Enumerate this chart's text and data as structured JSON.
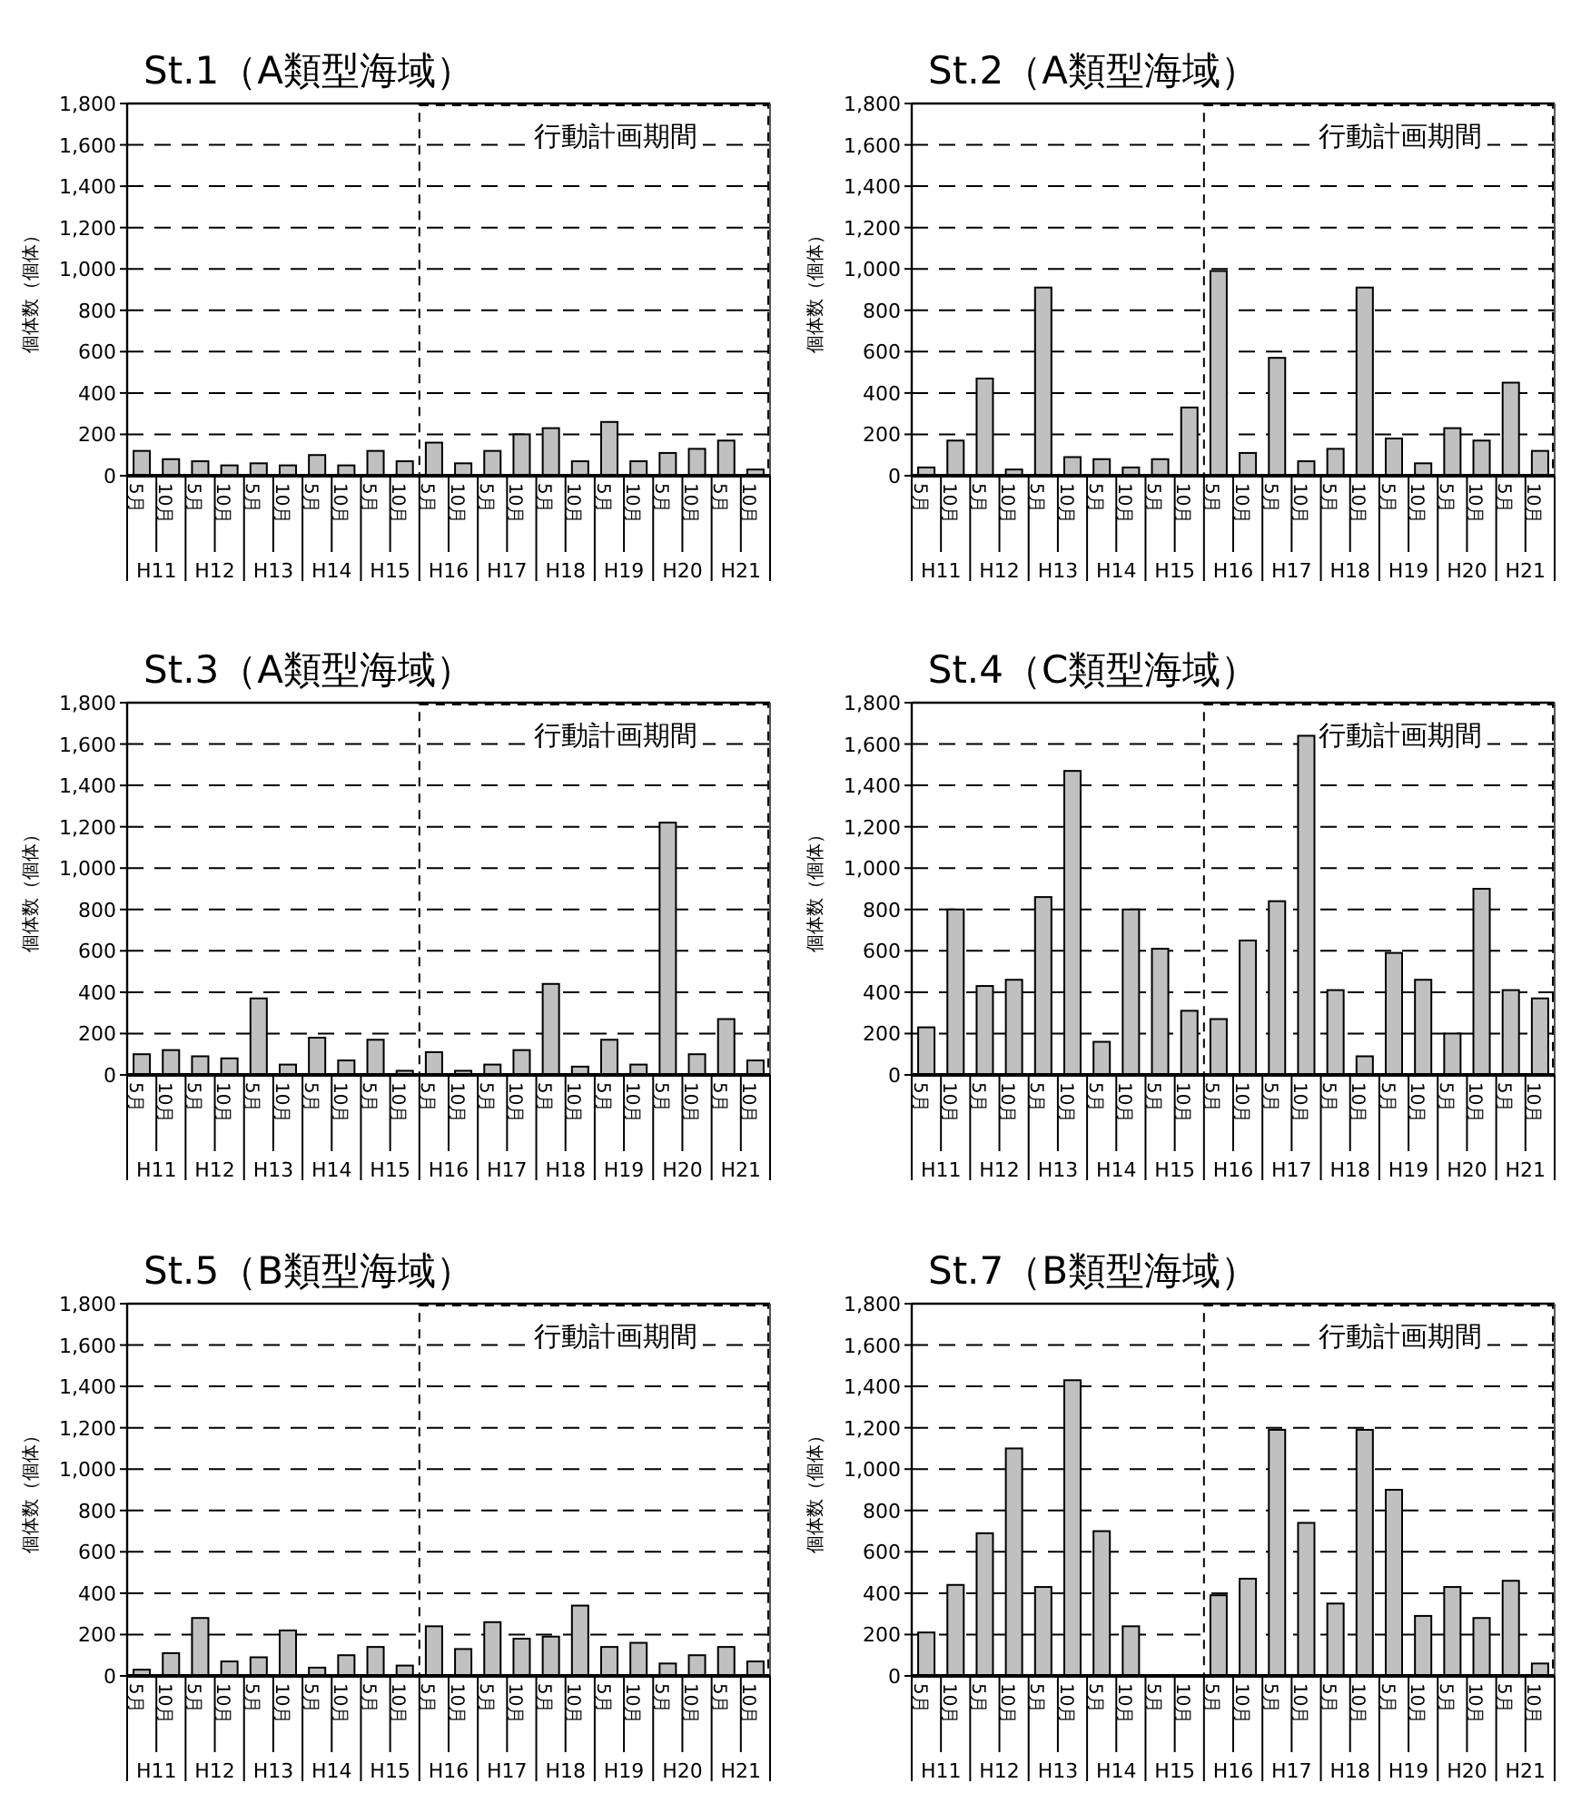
{
  "chart_data": [
    {
      "type": "bar",
      "title": "St.1（A類型海域）",
      "ylabel": "個体数（個体）",
      "categories": [
        "H11",
        "H12",
        "H13",
        "H14",
        "H15",
        "H16",
        "H17",
        "H18",
        "H19",
        "H20",
        "H21"
      ],
      "ylim": [
        0,
        1800
      ],
      "yticks": [
        {
          "value": 0,
          "label": "0"
        },
        {
          "value": 200,
          "label": "200"
        },
        {
          "value": 400,
          "label": "400"
        },
        {
          "value": 600,
          "label": "600"
        },
        {
          "value": 800,
          "label": "800"
        },
        {
          "value": 1000,
          "label": "1,000"
        },
        {
          "value": 1200,
          "label": "1,200"
        },
        {
          "value": 1400,
          "label": "1,400"
        },
        {
          "value": 1600,
          "label": "1,600"
        },
        {
          "value": 1800,
          "label": "1,800"
        }
      ],
      "grid": "y",
      "annotations": [
        "行動計画期間"
      ],
      "series": [
        {
          "name": "5月",
          "color": "#c0c0c0",
          "values": [
            120,
            70,
            60,
            100,
            120,
            160,
            120,
            230,
            260,
            110,
            170
          ]
        },
        {
          "name": "10月",
          "color": "#c0c0c0",
          "values": [
            80,
            50,
            50,
            50,
            70,
            60,
            200,
            70,
            70,
            130,
            30
          ]
        }
      ]
    },
    {
      "type": "bar",
      "title": "St.2（A類型海域）",
      "ylabel": "個体数（個体）",
      "categories": [
        "H11",
        "H12",
        "H13",
        "H14",
        "H15",
        "H16",
        "H17",
        "H18",
        "H19",
        "H20",
        "H21"
      ],
      "ylim": [
        0,
        1800
      ],
      "yticks": [
        {
          "value": 0,
          "label": "0"
        },
        {
          "value": 200,
          "label": "200"
        },
        {
          "value": 400,
          "label": "400"
        },
        {
          "value": 600,
          "label": "600"
        },
        {
          "value": 800,
          "label": "800"
        },
        {
          "value": 1000,
          "label": "1,000"
        },
        {
          "value": 1200,
          "label": "1,200"
        },
        {
          "value": 1400,
          "label": "1,400"
        },
        {
          "value": 1600,
          "label": "1,600"
        },
        {
          "value": 1800,
          "label": "1,800"
        }
      ],
      "grid": "y",
      "annotations": [
        "行動計画期間"
      ],
      "series": [
        {
          "name": "5月",
          "color": "#c0c0c0",
          "values": [
            40,
            470,
            910,
            80,
            80,
            990,
            570,
            130,
            180,
            230,
            450
          ]
        },
        {
          "name": "10月",
          "color": "#c0c0c0",
          "values": [
            170,
            30,
            90,
            40,
            330,
            110,
            70,
            910,
            60,
            170,
            120
          ]
        }
      ]
    },
    {
      "type": "bar",
      "title": "St.3（A類型海域）",
      "ylabel": "個体数（個体）",
      "categories": [
        "H11",
        "H12",
        "H13",
        "H14",
        "H15",
        "H16",
        "H17",
        "H18",
        "H19",
        "H20",
        "H21"
      ],
      "ylim": [
        0,
        1800
      ],
      "yticks": [
        {
          "value": 0,
          "label": "0"
        },
        {
          "value": 200,
          "label": "200"
        },
        {
          "value": 400,
          "label": "400"
        },
        {
          "value": 600,
          "label": "600"
        },
        {
          "value": 800,
          "label": "800"
        },
        {
          "value": 1000,
          "label": "1,000"
        },
        {
          "value": 1200,
          "label": "1,200"
        },
        {
          "value": 1400,
          "label": "1,400"
        },
        {
          "value": 1600,
          "label": "1,600"
        },
        {
          "value": 1800,
          "label": "1,800"
        }
      ],
      "grid": "y",
      "annotations": [
        "行動計画期間"
      ],
      "series": [
        {
          "name": "5月",
          "color": "#c0c0c0",
          "values": [
            100,
            90,
            370,
            180,
            170,
            110,
            50,
            440,
            170,
            1220,
            270
          ]
        },
        {
          "name": "10月",
          "color": "#c0c0c0",
          "values": [
            120,
            80,
            50,
            70,
            20,
            20,
            120,
            40,
            50,
            100,
            70
          ]
        }
      ]
    },
    {
      "type": "bar",
      "title": "St.4（C類型海域）",
      "ylabel": "個体数（個体）",
      "categories": [
        "H11",
        "H12",
        "H13",
        "H14",
        "H15",
        "H16",
        "H17",
        "H18",
        "H19",
        "H20",
        "H21"
      ],
      "ylim": [
        0,
        1800
      ],
      "yticks": [
        {
          "value": 0,
          "label": "0"
        },
        {
          "value": 200,
          "label": "200"
        },
        {
          "value": 400,
          "label": "400"
        },
        {
          "value": 600,
          "label": "600"
        },
        {
          "value": 800,
          "label": "800"
        },
        {
          "value": 1000,
          "label": "1,000"
        },
        {
          "value": 1200,
          "label": "1,200"
        },
        {
          "value": 1400,
          "label": "1,400"
        },
        {
          "value": 1600,
          "label": "1,600"
        },
        {
          "value": 1800,
          "label": "1,800"
        }
      ],
      "grid": "y",
      "annotations": [
        "行動計画期間"
      ],
      "series": [
        {
          "name": "5月",
          "color": "#c0c0c0",
          "values": [
            230,
            430,
            860,
            160,
            610,
            270,
            840,
            410,
            590,
            200,
            410
          ]
        },
        {
          "name": "10月",
          "color": "#c0c0c0",
          "values": [
            800,
            460,
            1470,
            800,
            310,
            650,
            1640,
            90,
            460,
            900,
            370
          ]
        }
      ]
    },
    {
      "type": "bar",
      "title": "St.5（B類型海域）",
      "ylabel": "個体数（個体）",
      "categories": [
        "H11",
        "H12",
        "H13",
        "H14",
        "H15",
        "H16",
        "H17",
        "H18",
        "H19",
        "H20",
        "H21"
      ],
      "ylim": [
        0,
        1800
      ],
      "yticks": [
        {
          "value": 0,
          "label": "0"
        },
        {
          "value": 200,
          "label": "200"
        },
        {
          "value": 400,
          "label": "400"
        },
        {
          "value": 600,
          "label": "600"
        },
        {
          "value": 800,
          "label": "800"
        },
        {
          "value": 1000,
          "label": "1,000"
        },
        {
          "value": 1200,
          "label": "1,200"
        },
        {
          "value": 1400,
          "label": "1,400"
        },
        {
          "value": 1600,
          "label": "1,600"
        },
        {
          "value": 1800,
          "label": "1,800"
        }
      ],
      "grid": "y",
      "annotations": [
        "行動計画期間"
      ],
      "series": [
        {
          "name": "5月",
          "color": "#c0c0c0",
          "values": [
            30,
            280,
            90,
            40,
            140,
            240,
            260,
            190,
            140,
            60,
            140
          ]
        },
        {
          "name": "10月",
          "color": "#c0c0c0",
          "values": [
            110,
            70,
            220,
            100,
            50,
            130,
            180,
            340,
            160,
            100,
            70
          ]
        }
      ]
    },
    {
      "type": "bar",
      "title": "St.7（B類型海域）",
      "ylabel": "個体数（個体）",
      "categories": [
        "H11",
        "H12",
        "H13",
        "H14",
        "H15",
        "H16",
        "H17",
        "H18",
        "H19",
        "H20",
        "H21"
      ],
      "ylim": [
        0,
        1800
      ],
      "yticks": [
        {
          "value": 0,
          "label": "0"
        },
        {
          "value": 200,
          "label": "200"
        },
        {
          "value": 400,
          "label": "400"
        },
        {
          "value": 600,
          "label": "600"
        },
        {
          "value": 800,
          "label": "800"
        },
        {
          "value": 1000,
          "label": "1,000"
        },
        {
          "value": 1200,
          "label": "1,200"
        },
        {
          "value": 1400,
          "label": "1,400"
        },
        {
          "value": 1600,
          "label": "1,600"
        },
        {
          "value": 1800,
          "label": "1,800"
        }
      ],
      "grid": "y",
      "annotations": [
        "行動計画期間"
      ],
      "series": [
        {
          "name": "5月",
          "color": "#c0c0c0",
          "values": [
            210,
            690,
            430,
            700,
            null,
            390,
            1190,
            350,
            900,
            430,
            460
          ]
        },
        {
          "name": "10月",
          "color": "#c0c0c0",
          "values": [
            440,
            1100,
            1430,
            240,
            null,
            470,
            740,
            1190,
            290,
            280,
            60
          ]
        }
      ]
    }
  ]
}
